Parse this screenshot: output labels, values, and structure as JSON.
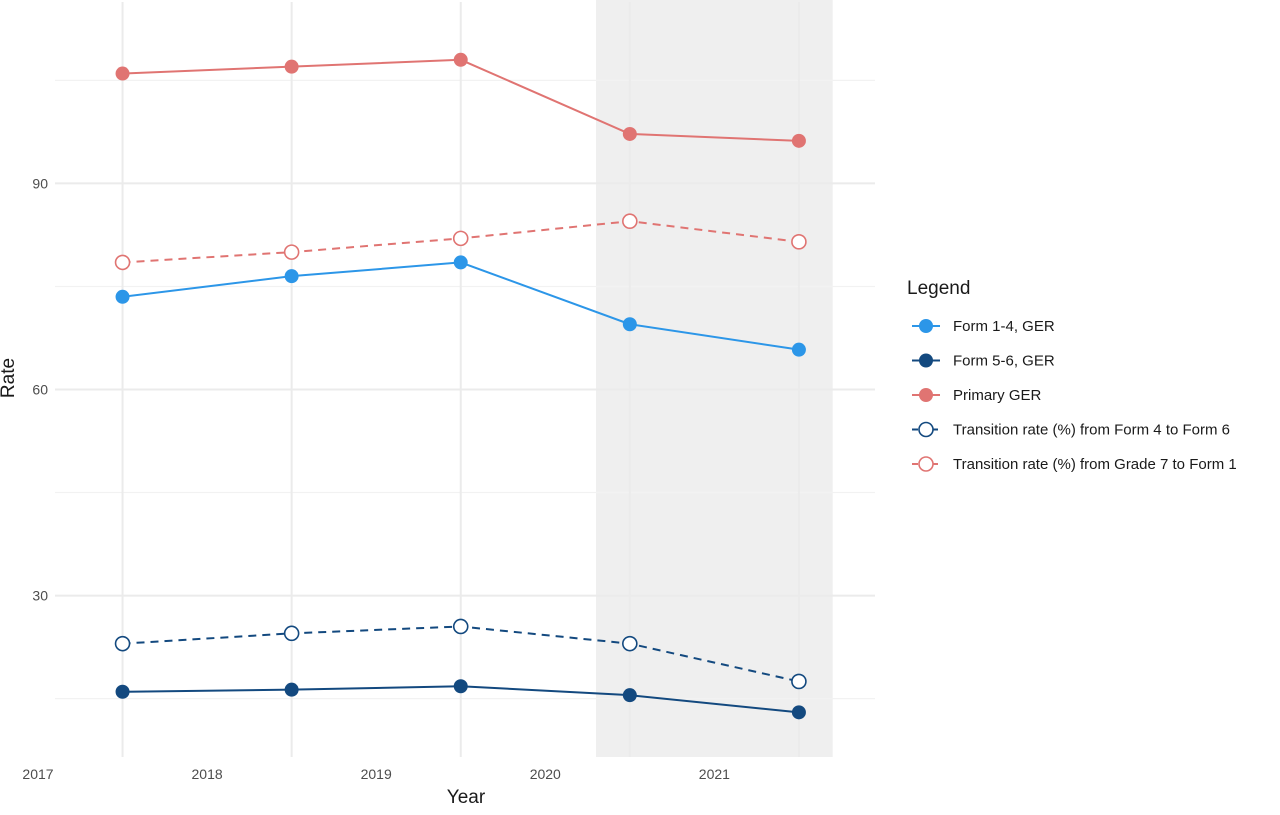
{
  "chart_data": {
    "type": "line",
    "xlabel": "Year",
    "ylabel": "Rate",
    "x": [
      2017.5,
      2018.5,
      2019.5,
      2020.5,
      2021.5
    ],
    "x_ticks": [
      2017,
      2018,
      2019,
      2020,
      2021
    ],
    "x_tick_labels": [
      "2017",
      "2018",
      "2019",
      "2020",
      "2021"
    ],
    "xlim": [
      2017,
      2021.95
    ],
    "y_ticks": [
      30,
      60,
      90
    ],
    "y_tick_labels": [
      "30",
      "60",
      "90"
    ],
    "ylim": [
      6.5,
      113.5
    ],
    "grid": true,
    "highlight_band": [
      2020.3,
      2021.7
    ],
    "legend_title": "Legend",
    "legend_position": "right",
    "series": [
      {
        "name": "Form 1-4, GER",
        "color": "#2c96e8",
        "line": "solid",
        "marker": "filled",
        "values": [
          73.5,
          76.5,
          78.5,
          69.5,
          65.8
        ]
      },
      {
        "name": "Form 5-6, GER",
        "color": "#13497f",
        "line": "solid",
        "marker": "filled",
        "values": [
          16.0,
          16.3,
          16.8,
          15.5,
          13.0
        ]
      },
      {
        "name": "Primary GER",
        "color": "#e07472",
        "line": "solid",
        "marker": "filled",
        "values": [
          106.0,
          107.0,
          108.0,
          97.2,
          96.2
        ]
      },
      {
        "name": "Transition rate (%) from Form 4 to Form 6",
        "color": "#13497f",
        "line": "dashed",
        "marker": "open",
        "values": [
          23.0,
          24.5,
          25.5,
          23.0,
          17.5
        ]
      },
      {
        "name": "Transition rate (%) from Grade 7 to Form 1",
        "color": "#e07472",
        "line": "dashed",
        "marker": "open",
        "values": [
          78.5,
          80.0,
          82.0,
          84.5,
          81.5
        ]
      }
    ]
  }
}
